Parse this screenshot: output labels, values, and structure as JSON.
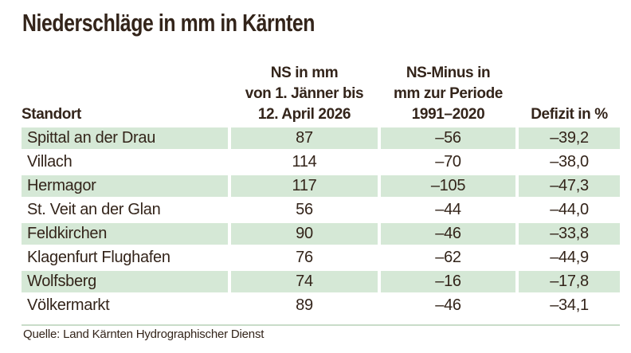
{
  "title": "Niederschläge in mm in Kärnten",
  "source": "Quelle: Land Kärnten Hydrographischer Dienst",
  "colors": {
    "row_green": "#d5e8d6",
    "text_color": "#33241a",
    "rule_color": "#c9dcc9",
    "bg": "#ffffff"
  },
  "table": {
    "headers": {
      "col1": "Standort",
      "col2_lines": [
        "NS in mm",
        "von 1. Jänner bis",
        "12. April 2026"
      ],
      "col3_lines": [
        "NS-Minus in",
        "mm zur Periode",
        "1991–2020"
      ],
      "col4": "Defizit in %"
    },
    "rows": [
      {
        "standort": "Spittal an der Drau",
        "ns_mm": "87",
        "ns_minus": "–56",
        "defizit": "–39,2"
      },
      {
        "standort": "Villach",
        "ns_mm": "114",
        "ns_minus": "–70",
        "defizit": "–38,0"
      },
      {
        "standort": "Hermagor",
        "ns_mm": "117",
        "ns_minus": "–105",
        "defizit": "–47,3"
      },
      {
        "standort": "St. Veit an der Glan",
        "ns_mm": "56",
        "ns_minus": "–44",
        "defizit": "–44,0"
      },
      {
        "standort": "Feldkirchen",
        "ns_mm": "90",
        "ns_minus": "–46",
        "defizit": "–33,8"
      },
      {
        "standort": "Klagenfurt Flughafen",
        "ns_mm": "76",
        "ns_minus": "–62",
        "defizit": "–44,9"
      },
      {
        "standort": "Wolfsberg",
        "ns_mm": "74",
        "ns_minus": "–16",
        "defizit": "–17,8"
      },
      {
        "standort": "Völkermarkt",
        "ns_mm": "89",
        "ns_minus": "–46",
        "defizit": "–34,1"
      }
    ]
  },
  "chart_data": {
    "type": "table",
    "title": "Niederschläge in mm in Kärnten",
    "columns": [
      "Standort",
      "NS in mm von 1. Jänner bis 12. April 2026",
      "NS-Minus in mm zur Periode 1991–2020",
      "Defizit in %"
    ],
    "rows": [
      [
        "Spittal an der Drau",
        87,
        -56,
        -39.2
      ],
      [
        "Villach",
        114,
        -70,
        -38.0
      ],
      [
        "Hermagor",
        117,
        -105,
        -47.3
      ],
      [
        "St. Veit an der Glan",
        56,
        -44,
        -44.0
      ],
      [
        "Feldkirchen",
        90,
        -46,
        -33.8
      ],
      [
        "Klagenfurt Flughafen",
        76,
        -62,
        -44.9
      ],
      [
        "Wolfsberg",
        74,
        -16,
        -17.8
      ],
      [
        "Völkermarkt",
        89,
        -46,
        -34.1
      ]
    ],
    "source": "Quelle: Land Kärnten Hydrographischer Dienst",
    "layout": {
      "striped_rows": "odd rows (1st,3rd,...) light green",
      "value_alignment": "center",
      "header_alignment": "center"
    }
  }
}
